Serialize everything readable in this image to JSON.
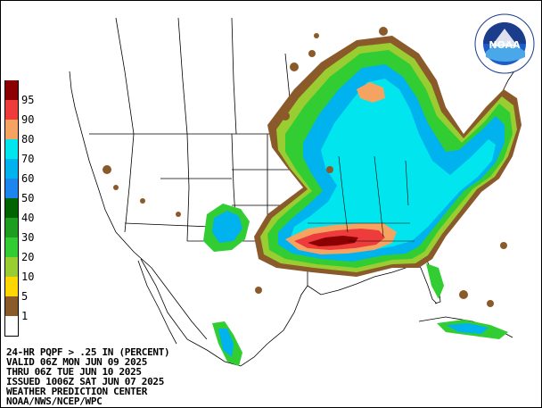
{
  "map": {
    "product_lines": [
      "24-HR PQPF > .25 IN (PERCENT)",
      "VALID 06Z MON JUN 09 2025",
      "THRU 06Z TUE JUN 10 2025",
      "ISSUED 1006Z SAT JUN 07 2025",
      "WEATHER PREDICTION CENTER",
      "NOAA/NWS/NCEP/WPC"
    ],
    "logo_text": "NOAA",
    "logo_ring_text": "NATIONAL OCEANIC AND ATMOSPHERIC ADMINISTRATION"
  },
  "legend": [
    {
      "label": "95",
      "color": "#8b0000"
    },
    {
      "label": "90",
      "color": "#ee3b3b"
    },
    {
      "label": "80",
      "color": "#f4a460"
    },
    {
      "label": "70",
      "color": "#00e5ee"
    },
    {
      "label": "60",
      "color": "#00b2ee"
    },
    {
      "label": "50",
      "color": "#1c86ee"
    },
    {
      "label": "40",
      "color": "#006400"
    },
    {
      "label": "30",
      "color": "#1e9e1e"
    },
    {
      "label": "20",
      "color": "#32cd32"
    },
    {
      "label": "10",
      "color": "#9acd32"
    },
    {
      "label": "5",
      "color": "#ffd700"
    },
    {
      "label": "1",
      "color": "#8b5a2b"
    },
    {
      "label": "",
      "color": "#ffffff"
    }
  ],
  "colors": {
    "background": "#ffffff",
    "border": "#000000"
  }
}
